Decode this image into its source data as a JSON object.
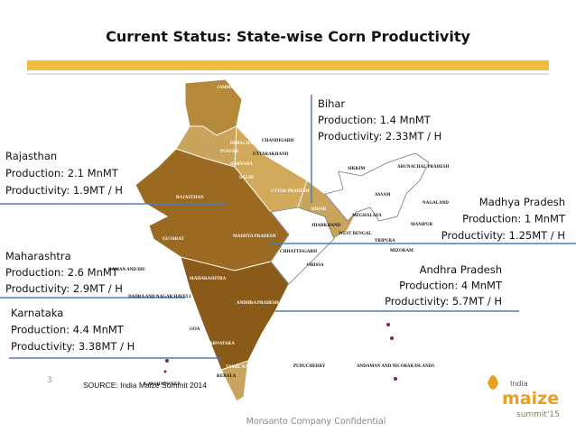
{
  "header": {
    "title": "Current Status: State-wise Corn Productivity"
  },
  "annotations": [
    {
      "state": "Bihar",
      "production": "Production: 1.4 MnMT",
      "productivity": "Productivity: 2.33MT / H"
    },
    {
      "state": "Rajasthan",
      "production": "Production: 2.1 MnMT",
      "productivity": "Productivity: 1.9MT / H"
    },
    {
      "state": "Madhya Pradesh",
      "production": "Production: 1 MnMT",
      "productivity": "Productivity: 1.25MT / H"
    },
    {
      "state": "Maharashtra",
      "production": "Production: 2.6 MnMT",
      "productivity": "Productivity: 2.9MT / H"
    },
    {
      "state": "Andhra Pradesh",
      "production": "Production: 4 MnMT",
      "productivity": "Productivity: 5.7MT / H"
    },
    {
      "state": "Karnataka",
      "production": "Production: 4.4 MnMT",
      "productivity": "Productivity: 3.38MT / H"
    }
  ],
  "map_labels": [
    "JAMMU-KASHMIR",
    "HIMACHAL PRADESH",
    "PUNJAB",
    "CHANDIGARH",
    "UTTARAKHAND",
    "HARYANA",
    "DELHI",
    "RAJASTHAN",
    "UTTAR PRADESH",
    "BIHAR",
    "SIKKIM",
    "ARUNACHAL PRADESH",
    "ASSAM",
    "NAGALAND",
    "MEGHALAYA",
    "MANIPUR",
    "JHARKHAND",
    "WEST BENGAL",
    "TRIPURA",
    "MIZORAM",
    "GUJARAT",
    "MADHYA PRADESH",
    "CHHATTISGARH",
    "ORISSA",
    "DAMAN AND DIU",
    "DADRA AND NAGAR HAVELI",
    "MAHARASHTRA",
    "ANDHRA PRADESH",
    "GOA",
    "KARNATAKA",
    "KERALA",
    "TAMIL NADU",
    "PUDUCHERRY",
    "LAKSHADWEEP",
    "ANDAMAN AND NICOBAR ISLANDS"
  ],
  "footer": {
    "page": "3",
    "source": "SOURCE: India Maize Summit 2014",
    "confidential": "Monsanto Company Confidential"
  },
  "logo": {
    "top": "India",
    "main": "maize",
    "sub": "summit'15"
  }
}
